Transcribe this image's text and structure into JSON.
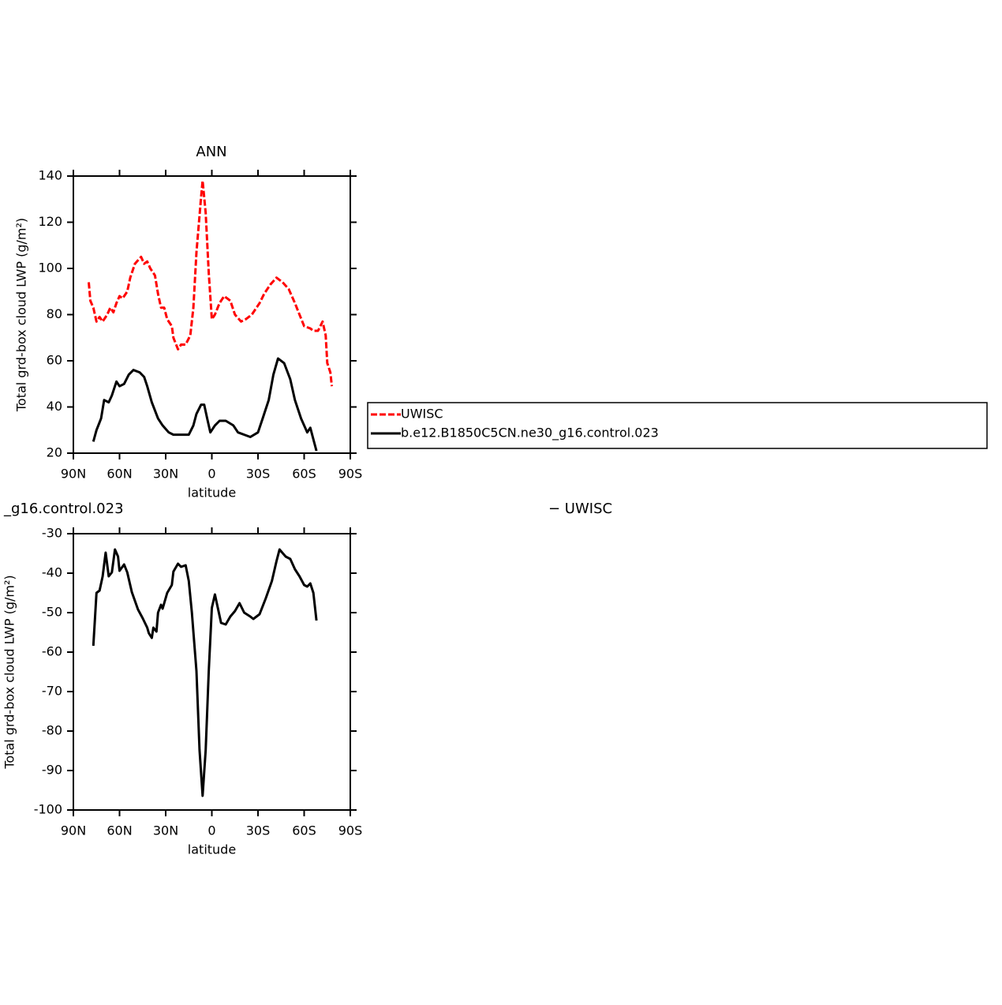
{
  "chart_data": [
    {
      "type": "line",
      "title": "ANN",
      "xlabel": "latitude",
      "ylabel": "Total grd-box cloud LWP (g/m²)",
      "xlim": [
        90,
        -90
      ],
      "ylim": [
        20,
        140
      ],
      "xticks": [
        {
          "value": 90,
          "label": "90N"
        },
        {
          "value": 60,
          "label": "60N"
        },
        {
          "value": 30,
          "label": "30N"
        },
        0,
        {
          "value": -30,
          "label": "30S"
        },
        {
          "value": -60,
          "label": "60S"
        },
        {
          "value": -90,
          "label": "90S"
        }
      ],
      "yticks": [
        20,
        40,
        60,
        80,
        100,
        120,
        140
      ],
      "legend": "right",
      "series": [
        {
          "name": "UWISC",
          "color": "#ff0000",
          "linestyle": "dashed",
          "x": [
            80,
            79,
            77,
            75,
            73,
            71,
            68,
            66,
            64,
            62,
            60,
            58,
            55,
            53,
            50,
            46,
            44,
            42,
            40,
            37,
            35,
            33,
            31,
            29,
            26,
            25,
            22,
            20,
            17,
            14,
            12,
            10,
            7,
            6,
            4,
            2,
            0,
            -2,
            -5,
            -8,
            -12,
            -15,
            -19,
            -22,
            -26,
            -31,
            -34,
            -38,
            -42,
            -46,
            -50,
            -54,
            -57,
            -60,
            -64,
            -66,
            -69,
            -72,
            -74,
            -75,
            -77,
            -78
          ],
          "values": [
            94,
            86,
            83,
            77,
            79,
            77,
            80,
            83,
            81,
            85,
            88,
            87,
            90,
            96,
            102,
            105,
            102,
            103,
            100,
            97,
            89,
            83,
            83,
            78,
            75,
            70,
            65,
            67,
            67,
            71,
            83,
            107,
            131,
            138,
            124,
            98,
            78,
            80,
            85,
            88,
            86,
            80,
            77,
            78,
            80,
            85,
            89,
            93,
            96,
            94,
            91,
            85,
            80,
            75,
            74,
            73,
            73,
            77,
            71,
            59,
            55,
            49
          ]
        },
        {
          "name": "b.e12.B1850C5CN.ne30_g16.control.023",
          "color": "#000000",
          "linestyle": "solid",
          "x": [
            77,
            75,
            72,
            70,
            67,
            65,
            62,
            60,
            57,
            54,
            51,
            47,
            44,
            42,
            39,
            35,
            32,
            28,
            25,
            22,
            18,
            15,
            12,
            10,
            7,
            5,
            3,
            1,
            -2,
            -5,
            -9,
            -14,
            -17,
            -21,
            -25,
            -30,
            -33,
            -37,
            -40,
            -43,
            -47,
            -51,
            -54,
            -58,
            -62,
            -64,
            -66,
            -68
          ],
          "values": [
            25,
            30,
            35,
            43,
            42,
            45,
            51,
            49,
            50,
            54,
            56,
            55,
            53,
            49,
            42,
            35,
            32,
            29,
            28,
            28,
            28,
            28,
            32,
            37,
            41,
            41,
            35,
            29,
            32,
            34,
            34,
            32,
            29,
            28,
            27,
            29,
            35,
            43,
            54,
            61,
            59,
            52,
            43,
            35,
            29,
            31,
            26,
            21
          ]
        }
      ]
    },
    {
      "type": "line",
      "title": [
        "_g16.control.023",
        "− UWISC"
      ],
      "xlabel": "latitude",
      "ylabel": "Total grd-box cloud LWP (g/m²)",
      "xlim": [
        90,
        -90
      ],
      "ylim": [
        -100,
        -30
      ],
      "xticks": [
        {
          "value": 90,
          "label": "90N"
        },
        {
          "value": 60,
          "label": "60N"
        },
        {
          "value": 30,
          "label": "30N"
        },
        0,
        {
          "value": -30,
          "label": "30S"
        },
        {
          "value": -60,
          "label": "60S"
        },
        {
          "value": -90,
          "label": "90S"
        }
      ],
      "yticks": [
        -100,
        -90,
        -80,
        -70,
        -60,
        -50,
        -40,
        -30
      ],
      "series": [
        {
          "color": "#000000",
          "linestyle": "solid",
          "x": [
            77,
            75,
            73,
            71,
            69,
            67,
            65,
            63,
            61,
            60,
            57,
            55,
            52,
            48,
            45,
            42,
            41,
            39,
            38,
            36,
            35,
            33,
            32,
            29,
            26,
            25,
            22,
            20,
            17,
            15,
            13,
            10,
            8,
            6,
            4,
            2,
            0,
            -2,
            -4,
            -6,
            -9,
            -12,
            -15,
            -18,
            -21,
            -25,
            -27,
            -31,
            -35,
            -39,
            -42,
            -44,
            -48,
            -51,
            -54,
            -57,
            -60,
            -62,
            -64,
            -66,
            -68
          ],
          "values": [
            -58.4,
            -45,
            -44.4,
            -40.8,
            -34.8,
            -40.8,
            -39.8,
            -34,
            -35.8,
            -39.4,
            -37.8,
            -39.8,
            -44.8,
            -49.2,
            -51.4,
            -53.8,
            -55.2,
            -56.4,
            -53.8,
            -54.8,
            -50,
            -48,
            -49,
            -45,
            -43,
            -39.6,
            -37.6,
            -38.4,
            -38,
            -42,
            -50,
            -64.8,
            -84.8,
            -96.4,
            -84.8,
            -64.8,
            -48.8,
            -45.4,
            -49,
            -52.6,
            -53,
            -51,
            -49.6,
            -47.6,
            -50,
            -51,
            -51.6,
            -50.4,
            -46.4,
            -42,
            -37,
            -34,
            -35.8,
            -36.4,
            -39,
            -40.8,
            -43,
            -43.4,
            -42.6,
            -45,
            -52
          ]
        }
      ]
    }
  ]
}
